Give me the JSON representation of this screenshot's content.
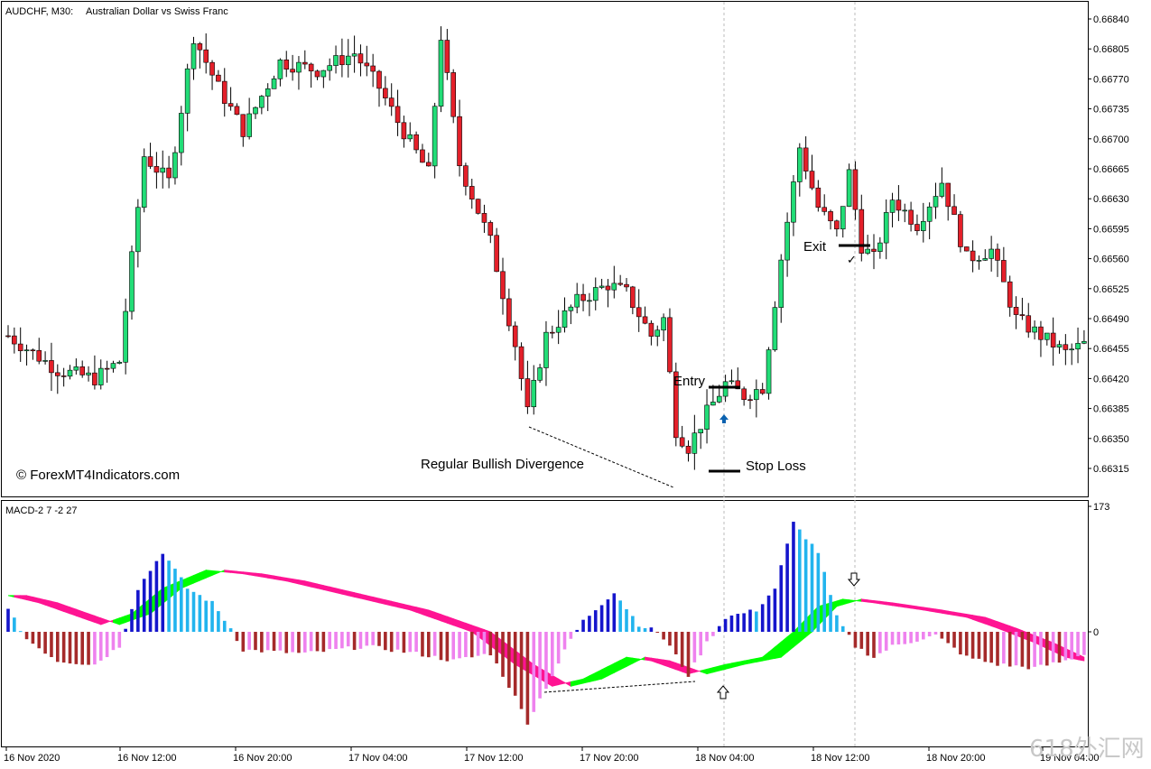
{
  "header": {
    "symbol": "AUDCHF, M30:",
    "description": "Australian Dollar vs Swiss Franc"
  },
  "copyright": "© ForexMT4Indicators.com",
  "watermark": "618外汇网",
  "annotations": {
    "entry": "Entry",
    "exit": "Exit",
    "stop_loss": "Stop Loss",
    "divergence": "Regular Bullish Divergence"
  },
  "price_axis": {
    "ticks": [
      "0.66840",
      "0.66805",
      "0.66770",
      "0.66735",
      "0.66700",
      "0.66665",
      "0.66630",
      "0.66595",
      "0.66560",
      "0.66525",
      "0.66490",
      "0.66455",
      "0.66420",
      "0.66385",
      "0.66350",
      "0.66315"
    ]
  },
  "indicator": {
    "label": "MACD-2 7 -2 27",
    "scale_max": "173",
    "scale_zero": "0"
  },
  "time_axis": {
    "labels": [
      "16 Nov 2020",
      "16 Nov 12:00",
      "16 Nov 20:00",
      "17 Nov 04:00",
      "17 Nov 12:00",
      "17 Nov 20:00",
      "18 Nov 04:00",
      "18 Nov 12:00",
      "18 Nov 20:00",
      "19 Nov 04:00"
    ]
  },
  "colors": {
    "bull_candle": "#22dd77",
    "bear_candle": "#e4202a",
    "wick": "#000000",
    "hist_pos_strong": "#1515cc",
    "hist_pos_weak": "#22b4ee",
    "hist_neg_strong": "#a52a2a",
    "hist_neg_weak": "#ee82ee",
    "ribbon_up": "#00ff00",
    "ribbon_down": "#ff1493"
  },
  "chart_data": [
    {
      "type": "candlestick",
      "title": "AUDCHF, M30: Australian Dollar vs Swiss Franc",
      "timeframe": "M30",
      "ylim": [
        0.663,
        0.66855
      ],
      "x_range": [
        "16 Nov 2020 00:00",
        "19 Nov 04:00"
      ],
      "key_levels": {
        "entry": 0.66414,
        "exit": 0.66575,
        "stop_loss": 0.6631
      },
      "divergence_price_points": [
        0.66371,
        0.663
      ],
      "close_path": [
        {
          "bar": 0,
          "close": 0.6647
        },
        {
          "bar": 8,
          "close": 0.6643
        },
        {
          "bar": 14,
          "close": 0.6642
        },
        {
          "bar": 18,
          "close": 0.6644
        },
        {
          "bar": 22,
          "close": 0.6668
        },
        {
          "bar": 26,
          "close": 0.6665
        },
        {
          "bar": 30,
          "close": 0.6682
        },
        {
          "bar": 34,
          "close": 0.6676
        },
        {
          "bar": 38,
          "close": 0.6671
        },
        {
          "bar": 44,
          "close": 0.6679
        },
        {
          "bar": 50,
          "close": 0.6678
        },
        {
          "bar": 56,
          "close": 0.668
        },
        {
          "bar": 60,
          "close": 0.6676
        },
        {
          "bar": 63,
          "close": 0.6672
        },
        {
          "bar": 68,
          "close": 0.6666
        },
        {
          "bar": 70,
          "close": 0.6682
        },
        {
          "bar": 73,
          "close": 0.6667
        },
        {
          "bar": 78,
          "close": 0.6658
        },
        {
          "bar": 82,
          "close": 0.6646
        },
        {
          "bar": 84,
          "close": 0.6638
        },
        {
          "bar": 87,
          "close": 0.6647
        },
        {
          "bar": 92,
          "close": 0.6651
        },
        {
          "bar": 97,
          "close": 0.6653
        },
        {
          "bar": 100,
          "close": 0.6652
        },
        {
          "bar": 104,
          "close": 0.6647
        },
        {
          "bar": 106,
          "close": 0.6649
        },
        {
          "bar": 108,
          "close": 0.6636
        },
        {
          "bar": 110,
          "close": 0.6634
        },
        {
          "bar": 113,
          "close": 0.6638
        },
        {
          "bar": 116,
          "close": 0.66414
        },
        {
          "bar": 119,
          "close": 0.664
        },
        {
          "bar": 122,
          "close": 0.6641
        },
        {
          "bar": 125,
          "close": 0.6656
        },
        {
          "bar": 128,
          "close": 0.6669
        },
        {
          "bar": 131,
          "close": 0.6662
        },
        {
          "bar": 134,
          "close": 0.6659
        },
        {
          "bar": 136,
          "close": 0.6666
        },
        {
          "bar": 138,
          "close": 0.66575
        },
        {
          "bar": 140,
          "close": 0.6656
        },
        {
          "bar": 143,
          "close": 0.6663
        },
        {
          "bar": 147,
          "close": 0.666
        },
        {
          "bar": 151,
          "close": 0.6665
        },
        {
          "bar": 155,
          "close": 0.6656
        },
        {
          "bar": 159,
          "close": 0.6657
        },
        {
          "bar": 163,
          "close": 0.6649
        },
        {
          "bar": 167,
          "close": 0.6647
        },
        {
          "bar": 171,
          "close": 0.6645
        },
        {
          "bar": 174,
          "close": 0.6646
        }
      ]
    },
    {
      "type": "bar",
      "title": "MACD-2 7 -2 27",
      "ylim": [
        -140,
        173
      ],
      "histogram_path": [
        {
          "bar": 0,
          "value": 30
        },
        {
          "bar": 3,
          "value": -10
        },
        {
          "bar": 8,
          "value": -40
        },
        {
          "bar": 14,
          "value": -45
        },
        {
          "bar": 18,
          "value": -20
        },
        {
          "bar": 21,
          "value": 60
        },
        {
          "bar": 25,
          "value": 110
        },
        {
          "bar": 29,
          "value": 60
        },
        {
          "bar": 33,
          "value": 40
        },
        {
          "bar": 36,
          "value": 5
        },
        {
          "bar": 38,
          "value": -25
        },
        {
          "bar": 48,
          "value": -30
        },
        {
          "bar": 58,
          "value": -20
        },
        {
          "bar": 66,
          "value": -30
        },
        {
          "bar": 72,
          "value": -40
        },
        {
          "bar": 78,
          "value": -30
        },
        {
          "bar": 82,
          "value": -90
        },
        {
          "bar": 84,
          "value": -125
        },
        {
          "bar": 88,
          "value": -60
        },
        {
          "bar": 91,
          "value": -10
        },
        {
          "bar": 93,
          "value": 15
        },
        {
          "bar": 98,
          "value": 55
        },
        {
          "bar": 102,
          "value": 10
        },
        {
          "bar": 105,
          "value": 0
        },
        {
          "bar": 107,
          "value": -20
        },
        {
          "bar": 110,
          "value": -60
        },
        {
          "bar": 113,
          "value": -15
        },
        {
          "bar": 116,
          "value": 20
        },
        {
          "bar": 121,
          "value": 30
        },
        {
          "bar": 124,
          "value": 60
        },
        {
          "bar": 127,
          "value": 150
        },
        {
          "bar": 131,
          "value": 110
        },
        {
          "bar": 134,
          "value": 20
        },
        {
          "bar": 137,
          "value": -20
        },
        {
          "bar": 140,
          "value": -35
        },
        {
          "bar": 143,
          "value": -20
        },
        {
          "bar": 150,
          "value": -5
        },
        {
          "bar": 155,
          "value": -35
        },
        {
          "bar": 160,
          "value": -45
        },
        {
          "bar": 166,
          "value": -50
        },
        {
          "bar": 171,
          "value": -40
        },
        {
          "bar": 174,
          "value": -30
        }
      ],
      "ribbon_path": [
        {
          "bar": 0,
          "value": 50
        },
        {
          "bar": 5,
          "value": 40
        },
        {
          "bar": 10,
          "value": 25
        },
        {
          "bar": 15,
          "value": 10
        },
        {
          "bar": 20,
          "value": 25
        },
        {
          "bar": 25,
          "value": 60
        },
        {
          "bar": 32,
          "value": 85
        },
        {
          "bar": 38,
          "value": 80
        },
        {
          "bar": 45,
          "value": 70
        },
        {
          "bar": 55,
          "value": 50
        },
        {
          "bar": 65,
          "value": 30
        },
        {
          "bar": 75,
          "value": 0
        },
        {
          "bar": 82,
          "value": -45
        },
        {
          "bar": 88,
          "value": -75
        },
        {
          "bar": 93,
          "value": -65
        },
        {
          "bar": 100,
          "value": -35
        },
        {
          "bar": 104,
          "value": -40
        },
        {
          "bar": 110,
          "value": -58
        },
        {
          "bar": 116,
          "value": -45
        },
        {
          "bar": 122,
          "value": -35
        },
        {
          "bar": 127,
          "value": 0
        },
        {
          "bar": 131,
          "value": 35
        },
        {
          "bar": 135,
          "value": 45
        },
        {
          "bar": 140,
          "value": 40
        },
        {
          "bar": 148,
          "value": 30
        },
        {
          "bar": 155,
          "value": 20
        },
        {
          "bar": 160,
          "value": 5
        },
        {
          "bar": 166,
          "value": -15
        },
        {
          "bar": 171,
          "value": -35
        },
        {
          "bar": 174,
          "value": -40
        }
      ]
    }
  ]
}
